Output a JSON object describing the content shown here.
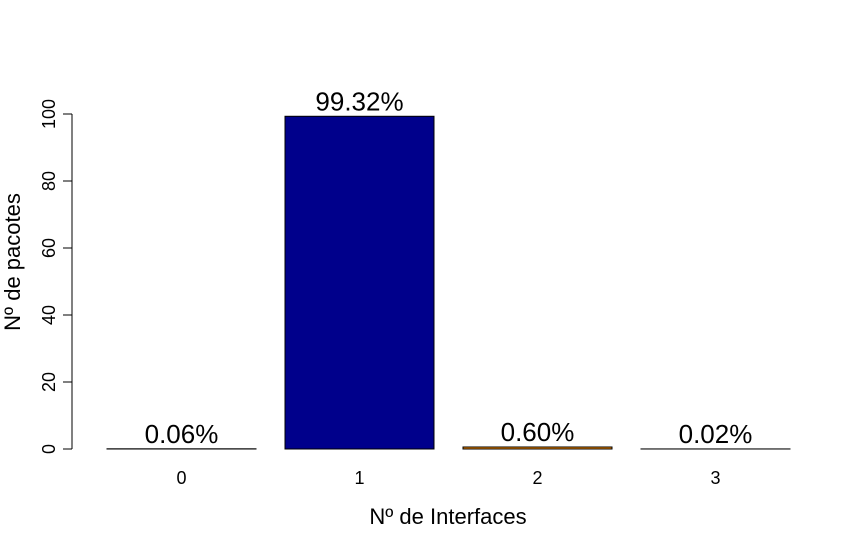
{
  "chart_data": {
    "type": "bar",
    "title": "",
    "xlabel": "Nº de Interfaces",
    "ylabel": "Nº de pacotes",
    "ylim": [
      0,
      100
    ],
    "yticks": [
      "0",
      "20",
      "40",
      "60",
      "80",
      "100"
    ],
    "categories": [
      "0",
      "1",
      "2",
      "3"
    ],
    "values": [
      0.06,
      99.32,
      0.6,
      0.02
    ],
    "data_labels": [
      "0.06%",
      "99.32%",
      "0.60%",
      "0.02%"
    ],
    "bar_colors": [
      "#000000",
      "#00008B",
      "#FF8C00",
      "#000000"
    ],
    "grid": false,
    "legend": "none"
  }
}
